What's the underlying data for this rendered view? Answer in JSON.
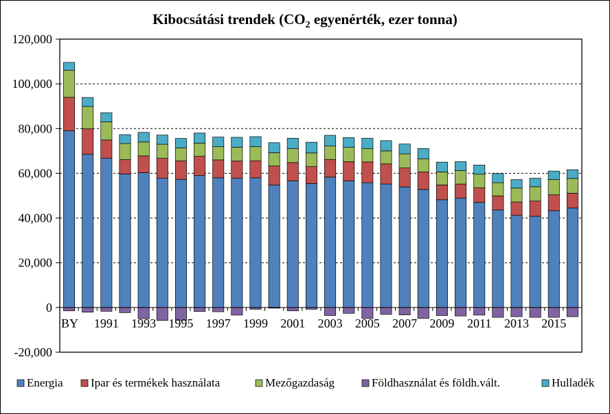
{
  "chart_data": {
    "type": "bar",
    "stacked": true,
    "title": {
      "pre": "Kibocsátási trendek (CO",
      "sub": "2",
      "post": " egyenérték, ezer tonna)"
    },
    "ylim": [
      -20000,
      120000
    ],
    "yticks": [
      -20000,
      0,
      20000,
      40000,
      60000,
      80000,
      100000,
      120000
    ],
    "ytick_labels": [
      "-20,000",
      "0",
      "20,000",
      "40,000",
      "60,000",
      "80,000",
      "100,000",
      "120,000"
    ],
    "grid": "horizontal dashed",
    "legend_position": "bottom",
    "categories": [
      "BY",
      "1990",
      "1991",
      "1992",
      "1993",
      "1994",
      "1995",
      "1996",
      "1997",
      "1998",
      "1999",
      "2000",
      "2001",
      "2002",
      "2003",
      "2004",
      "2005",
      "2006",
      "2007",
      "2008",
      "2009",
      "2010",
      "2011",
      "2012",
      "2013",
      "2014",
      "2015",
      "2016"
    ],
    "xtick_labels": [
      "BY",
      "",
      "1991",
      "",
      "1993",
      "",
      "1995",
      "",
      "1997",
      "",
      "1999",
      "",
      "2001",
      "",
      "2003",
      "",
      "2005",
      "",
      "2007",
      "",
      "2009",
      "",
      "2011",
      "",
      "2013",
      "",
      "2015",
      ""
    ],
    "series": [
      {
        "name": "Energia",
        "color": "#4F81BD",
        "values": [
          79000,
          68500,
          66700,
          59700,
          60300,
          57800,
          57300,
          59000,
          58000,
          57800,
          58000,
          54800,
          56600,
          55400,
          58300,
          56600,
          55800,
          55200,
          53900,
          52800,
          48200,
          48900,
          47000,
          43600,
          41200,
          40800,
          43300,
          44500
        ]
      },
      {
        "name": "Ipar és termékek használata",
        "color": "#C0504D",
        "values": [
          15000,
          11400,
          8200,
          6400,
          7500,
          8900,
          8300,
          8600,
          8000,
          7700,
          7600,
          8500,
          8200,
          7600,
          7900,
          8600,
          9300,
          9000,
          8500,
          7800,
          6600,
          6300,
          6500,
          6300,
          6000,
          6800,
          7100,
          6600
        ]
      },
      {
        "name": "Mezőgazdaság",
        "color": "#9BBB59",
        "values": [
          12100,
          10000,
          8100,
          7200,
          6200,
          6300,
          5800,
          5900,
          5900,
          6200,
          6300,
          5900,
          6200,
          6100,
          6000,
          6400,
          6000,
          5800,
          6300,
          5900,
          5800,
          6000,
          6100,
          5900,
          6200,
          6400,
          6800,
          6600
        ]
      },
      {
        "name": "Földhasználat és földh.vált.",
        "color": "#8064A2",
        "values": [
          -1500,
          -2100,
          -1700,
          -2300,
          -5000,
          -5800,
          -5700,
          -1800,
          -1900,
          -3400,
          -800,
          -300,
          -1500,
          -800,
          -3600,
          -2600,
          -4900,
          -3100,
          -3300,
          -4900,
          -3600,
          -3800,
          -3400,
          -4400,
          -4100,
          -4400,
          -4400,
          -4100
        ]
      },
      {
        "name": "Hulladék",
        "color": "#4BACC6",
        "values": [
          3500,
          4000,
          4100,
          4000,
          4300,
          4100,
          4200,
          4500,
          4300,
          4400,
          4500,
          4500,
          4700,
          4800,
          4800,
          4400,
          4600,
          4600,
          4400,
          4600,
          4400,
          4000,
          4100,
          4100,
          3800,
          3800,
          3800,
          3900
        ]
      }
    ]
  }
}
